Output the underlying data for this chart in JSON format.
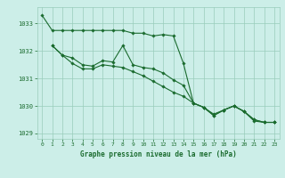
{
  "title": "Graphe pression niveau de la mer (hPa)",
  "background_color": "#cceee8",
  "grid_color": "#99ccbb",
  "line_color": "#1a6b2e",
  "xlim": [
    -0.5,
    23.5
  ],
  "ylim": [
    1028.8,
    1033.6
  ],
  "yticks": [
    1029,
    1030,
    1031,
    1032,
    1033
  ],
  "xticks": [
    0,
    1,
    2,
    3,
    4,
    5,
    6,
    7,
    8,
    9,
    10,
    11,
    12,
    13,
    14,
    15,
    16,
    17,
    18,
    19,
    20,
    21,
    22,
    23
  ],
  "series1_x": [
    0,
    1,
    2,
    3,
    4,
    5,
    6,
    7,
    8,
    9,
    10,
    11,
    12,
    13,
    14,
    15,
    16,
    17,
    18,
    19,
    20,
    21,
    22,
    23
  ],
  "series1_y": [
    1033.3,
    1032.75,
    1032.75,
    1032.75,
    1032.75,
    1032.75,
    1032.75,
    1032.75,
    1032.75,
    1032.65,
    1032.65,
    1032.55,
    1032.6,
    1032.55,
    1031.55,
    1030.1,
    1029.95,
    1029.7,
    1029.85,
    1030.0,
    1029.8,
    1029.45,
    1029.4,
    1029.4
  ],
  "series2_x": [
    1,
    2,
    3,
    4,
    5,
    6,
    7,
    8,
    9,
    10,
    11,
    12,
    13,
    14,
    15,
    16,
    17,
    18,
    19,
    20,
    21,
    22,
    23
  ],
  "series2_y": [
    1032.2,
    1031.85,
    1031.75,
    1031.5,
    1031.45,
    1031.65,
    1031.6,
    1032.2,
    1031.5,
    1031.4,
    1031.35,
    1031.2,
    1030.95,
    1030.75,
    1030.1,
    1029.95,
    1029.65,
    1029.85,
    1030.0,
    1029.8,
    1029.5,
    1029.4,
    1029.4
  ],
  "series3_x": [
    1,
    2,
    3,
    4,
    5,
    6,
    7,
    8,
    9,
    10,
    11,
    12,
    13,
    14,
    15,
    16,
    17,
    18,
    19,
    20,
    21,
    22,
    23
  ],
  "series3_y": [
    1032.2,
    1031.85,
    1031.55,
    1031.35,
    1031.35,
    1031.5,
    1031.45,
    1031.4,
    1031.25,
    1031.1,
    1030.9,
    1030.7,
    1030.5,
    1030.35,
    1030.1,
    1029.95,
    1029.65,
    1029.85,
    1030.0,
    1029.8,
    1029.5,
    1029.4,
    1029.4
  ],
  "xlabel_fontsize": 5.5,
  "tick_fontsize": 4.5,
  "ytick_fontsize": 5.0
}
